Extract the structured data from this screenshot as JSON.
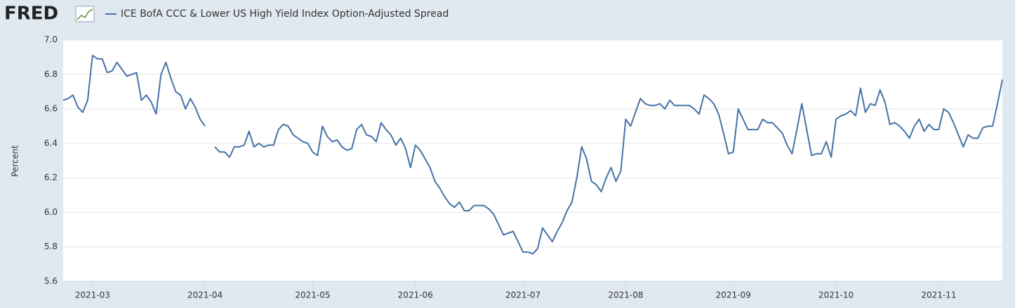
{
  "logo": "FRED",
  "chart_data": {
    "type": "line",
    "y_label": "Percent",
    "ylim": [
      5.6,
      7.0
    ],
    "yticks": [
      5.6,
      5.8,
      {
        "value": 6,
        "label": "6.0"
      },
      6.2,
      6.4,
      6.6,
      6.8,
      {
        "value": 7,
        "label": "7.0"
      }
    ],
    "grid": true,
    "categories": [
      null,
      null,
      null,
      null,
      null,
      null,
      "2021-03",
      null,
      null,
      null,
      null,
      null,
      null,
      null,
      null,
      null,
      null,
      null,
      null,
      null,
      null,
      null,
      null,
      null,
      null,
      null,
      null,
      null,
      null,
      "2021-04",
      null,
      null,
      null,
      null,
      null,
      null,
      null,
      null,
      null,
      null,
      null,
      null,
      null,
      null,
      null,
      null,
      null,
      null,
      null,
      null,
      null,
      "2021-05",
      null,
      null,
      null,
      null,
      null,
      null,
      null,
      null,
      null,
      null,
      null,
      null,
      null,
      null,
      null,
      null,
      null,
      null,
      null,
      null,
      "2021-06",
      null,
      null,
      null,
      null,
      null,
      null,
      null,
      null,
      null,
      null,
      null,
      null,
      null,
      null,
      null,
      null,
      null,
      null,
      null,
      null,
      null,
      "2021-07",
      null,
      null,
      null,
      null,
      null,
      null,
      null,
      null,
      null,
      null,
      null,
      null,
      null,
      null,
      null,
      null,
      null,
      null,
      null,
      null,
      "2021-08",
      null,
      null,
      null,
      null,
      null,
      null,
      null,
      null,
      null,
      null,
      null,
      null,
      null,
      null,
      null,
      null,
      null,
      null,
      null,
      null,
      null,
      "2021-09",
      null,
      null,
      null,
      null,
      null,
      null,
      null,
      null,
      null,
      null,
      null,
      null,
      null,
      null,
      null,
      null,
      null,
      null,
      null,
      null,
      "2021-10",
      null,
      null,
      null,
      null,
      null,
      null,
      null,
      null,
      null,
      null,
      null,
      null,
      null,
      null,
      null,
      null,
      null,
      null,
      null,
      null,
      "2021-11",
      null,
      null,
      null,
      null,
      null,
      null,
      null,
      null,
      null,
      null,
      null,
      null,
      null
    ],
    "series": [
      {
        "name": "ICE BofA CCC & Lower US High Yield Index Option-Adjusted Spread",
        "color": "#4572a7",
        "values": [
          6.65,
          6.66,
          6.68,
          6.61,
          6.58,
          6.65,
          6.91,
          6.89,
          6.89,
          6.81,
          6.82,
          6.87,
          6.83,
          6.79,
          6.8,
          6.81,
          6.65,
          6.68,
          6.64,
          6.57,
          6.8,
          6.87,
          6.78,
          6.7,
          6.68,
          6.6,
          6.66,
          6.61,
          6.54,
          6.5,
          null,
          6.38,
          6.35,
          6.35,
          6.32,
          6.38,
          6.38,
          6.39,
          6.47,
          6.38,
          6.4,
          6.38,
          6.39,
          6.39,
          6.48,
          6.51,
          6.5,
          6.45,
          6.43,
          6.41,
          6.4,
          6.35,
          6.33,
          6.5,
          6.44,
          6.41,
          6.42,
          6.38,
          6.36,
          6.37,
          6.48,
          6.51,
          6.45,
          6.44,
          6.41,
          6.52,
          6.48,
          6.45,
          6.39,
          6.43,
          6.37,
          6.26,
          6.39,
          6.36,
          6.31,
          6.26,
          6.18,
          6.14,
          6.09,
          6.05,
          6.03,
          6.06,
          6.01,
          6.01,
          6.04,
          6.04,
          6.04,
          6.02,
          5.99,
          5.93,
          5.87,
          5.88,
          5.89,
          5.83,
          5.77,
          5.77,
          5.76,
          5.79,
          5.91,
          5.87,
          5.83,
          5.89,
          5.94,
          6.01,
          6.06,
          6.2,
          6.38,
          6.31,
          6.18,
          6.16,
          6.12,
          6.2,
          6.26,
          6.18,
          6.24,
          6.54,
          6.5,
          6.58,
          6.66,
          6.63,
          6.62,
          6.62,
          6.63,
          6.6,
          6.65,
          6.62,
          6.62,
          6.62,
          6.62,
          6.6,
          6.57,
          6.68,
          6.66,
          6.63,
          6.57,
          6.46,
          6.34,
          6.35,
          6.6,
          6.54,
          6.48,
          6.48,
          6.48,
          6.54,
          6.52,
          6.52,
          6.49,
          6.46,
          6.39,
          6.34,
          6.48,
          6.63,
          6.48,
          6.33,
          6.34,
          6.34,
          6.41,
          6.32,
          6.54,
          6.56,
          6.57,
          6.59,
          6.56,
          6.72,
          6.58,
          6.63,
          6.62,
          6.71,
          6.64,
          6.51,
          6.52,
          6.5,
          6.47,
          6.43,
          6.5,
          6.54,
          6.47,
          6.51,
          6.48,
          6.48,
          6.6,
          6.58,
          6.52,
          6.45,
          6.38,
          6.45,
          6.43,
          6.43,
          6.49,
          6.5,
          6.5,
          6.63,
          6.77
        ]
      }
    ]
  }
}
